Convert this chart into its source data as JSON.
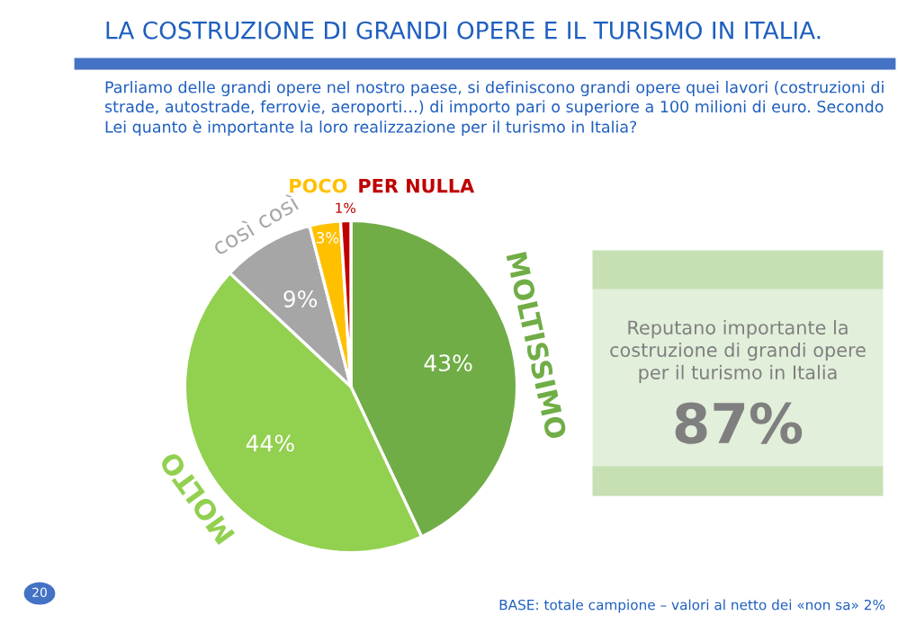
{
  "chart_data": {
    "type": "pie",
    "title": "LA COSTRUZIONE DI GRANDI OPERE E IL TURISMO IN ITALIA.",
    "subtitle": "Parliamo delle grandi opere nel nostro paese, si definiscono grandi opere quei lavori (costruzioni di strade, autostrade, ferrovie, aeroporti…) di importo pari o superiore a 100 milioni di euro. Secondo Lei quanto è importante la loro realizzazione per il turismo in Italia?",
    "categories": [
      "MOLTISSIMO",
      "MOLTO",
      "così così",
      "POCO",
      "PER NULLA"
    ],
    "values": [
      43,
      44,
      9,
      3,
      1
    ],
    "value_labels": [
      "43%",
      "44%",
      "9%",
      "3%",
      "1%"
    ],
    "colors": [
      "#70ad47",
      "#92d050",
      "#a6a6a6",
      "#ffc000",
      "#c00000"
    ],
    "annotations": [
      "Reputano importante la costruzione di grandi opere per il turismo in Italia",
      "87%",
      "BASE: totale campione – valori al netto dei «non sa» 2%",
      "20"
    ]
  }
}
